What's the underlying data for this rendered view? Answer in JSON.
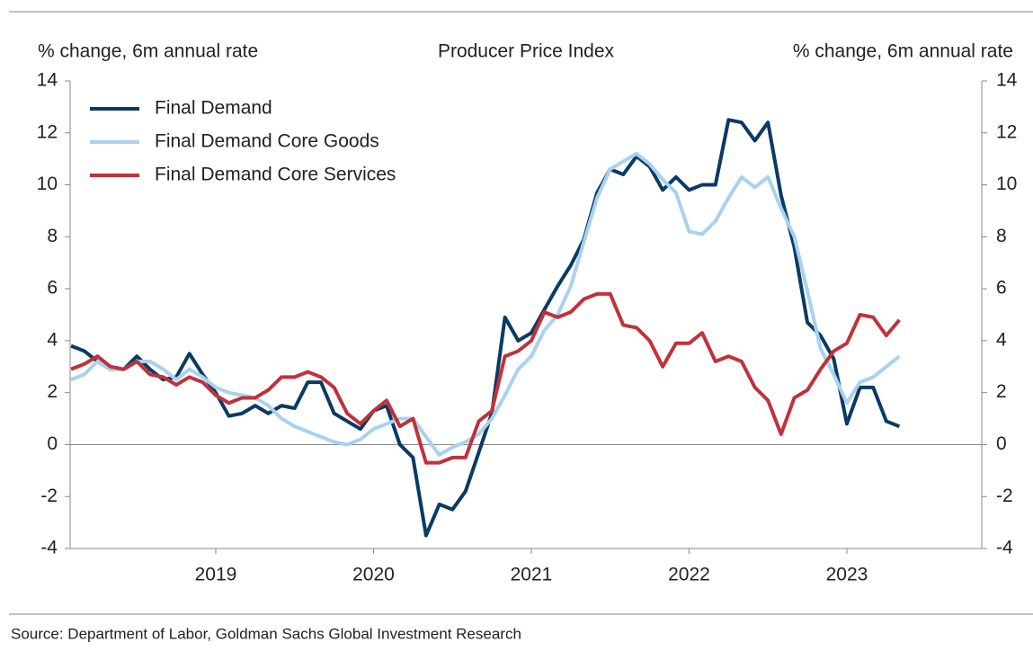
{
  "chart_data": {
    "type": "line",
    "title": "Producer Price Index",
    "y_label": "% change, 6m annual rate",
    "y2_label": "% change, 6m annual rate",
    "source": "Source: Department of Labor, Goldman Sachs Global Investment Research",
    "x": [
      2018.083,
      2018.167,
      2018.25,
      2018.333,
      2018.417,
      2018.5,
      2018.583,
      2018.667,
      2018.75,
      2018.833,
      2018.917,
      2019,
      2019.083,
      2019.167,
      2019.25,
      2019.333,
      2019.417,
      2019.5,
      2019.583,
      2019.667,
      2019.75,
      2019.833,
      2019.917,
      2020,
      2020.083,
      2020.167,
      2020.25,
      2020.333,
      2020.417,
      2020.5,
      2020.583,
      2020.667,
      2020.75,
      2020.833,
      2020.917,
      2021,
      2021.083,
      2021.167,
      2021.25,
      2021.333,
      2021.417,
      2021.5,
      2021.583,
      2021.667,
      2021.75,
      2021.833,
      2021.917,
      2022,
      2022.083,
      2022.167,
      2022.25,
      2022.333,
      2022.417,
      2022.5,
      2022.583,
      2022.667,
      2022.75,
      2022.833,
      2022.917,
      2023,
      2023.083,
      2023.167,
      2023.25,
      2023.333
    ],
    "series": [
      {
        "name": "Final Demand",
        "color": "#0b3a63",
        "values": [
          3.8,
          3.6,
          3.2,
          2.9,
          2.9,
          3.4,
          2.9,
          2.5,
          2.6,
          3.5,
          2.7,
          2.0,
          1.1,
          1.2,
          1.5,
          1.2,
          1.5,
          1.4,
          2.4,
          2.4,
          1.2,
          0.9,
          0.6,
          1.3,
          1.5,
          0.0,
          -0.5,
          -3.5,
          -2.3,
          -2.5,
          -1.8,
          -0.3,
          1.2,
          4.9,
          4.0,
          4.3,
          5.2,
          6.1,
          6.9,
          7.9,
          9.7,
          10.6,
          10.4,
          11.1,
          10.7,
          9.8,
          10.3,
          9.8,
          10.0,
          10.0,
          12.5,
          12.4,
          11.7,
          12.4,
          9.6,
          7.6,
          4.7,
          4.2,
          3.3,
          0.8,
          2.2,
          2.2,
          0.9,
          0.7
        ]
      },
      {
        "name": "Final Demand Core Goods",
        "color": "#a9d1f0",
        "values": [
          2.5,
          2.7,
          3.2,
          2.9,
          2.9,
          3.2,
          3.2,
          2.9,
          2.5,
          2.9,
          2.6,
          2.2,
          2.0,
          1.9,
          1.8,
          1.5,
          1.0,
          0.7,
          0.5,
          0.3,
          0.1,
          0.0,
          0.2,
          0.6,
          0.8,
          1.0,
          1.0,
          0.3,
          -0.4,
          -0.1,
          0.1,
          0.4,
          1.0,
          1.9,
          2.9,
          3.4,
          4.4,
          5.0,
          6.1,
          7.8,
          9.5,
          10.6,
          10.9,
          11.2,
          10.8,
          10.2,
          9.7,
          8.2,
          8.1,
          8.6,
          9.5,
          10.3,
          9.9,
          10.3,
          9.1,
          8.0,
          5.9,
          3.7,
          2.7,
          1.6,
          2.4,
          2.6,
          3.0,
          3.4
        ]
      },
      {
        "name": "Final Demand Core Services",
        "color": "#c0323a",
        "values": [
          2.9,
          3.1,
          3.4,
          3.0,
          2.9,
          3.2,
          2.7,
          2.6,
          2.3,
          2.6,
          2.4,
          1.9,
          1.6,
          1.8,
          1.8,
          2.1,
          2.6,
          2.6,
          2.8,
          2.6,
          2.2,
          1.2,
          0.8,
          1.3,
          1.7,
          0.7,
          1.0,
          -0.7,
          -0.7,
          -0.5,
          -0.5,
          0.9,
          1.3,
          3.4,
          3.6,
          4.0,
          5.1,
          4.9,
          5.1,
          5.6,
          5.8,
          5.8,
          4.6,
          4.5,
          4.0,
          3.0,
          3.9,
          3.9,
          4.3,
          3.2,
          3.4,
          3.2,
          2.2,
          1.7,
          0.4,
          1.8,
          2.1,
          2.9,
          3.6,
          3.9,
          5.0,
          4.9,
          4.2,
          4.8
        ]
      }
    ],
    "xlim": [
      2018.077,
      2023.855
    ],
    "xticks": [
      2019,
      2020,
      2021,
      2022,
      2023
    ],
    "ylim": [
      -4,
      14
    ],
    "yticks": [
      -4,
      -2,
      0,
      2,
      4,
      6,
      8,
      10,
      12,
      14
    ],
    "y2lim": [
      -4,
      14
    ],
    "y2ticks": [
      -4,
      -2,
      0,
      2,
      4,
      6,
      8,
      10,
      12,
      14
    ],
    "legend": "upper left"
  }
}
